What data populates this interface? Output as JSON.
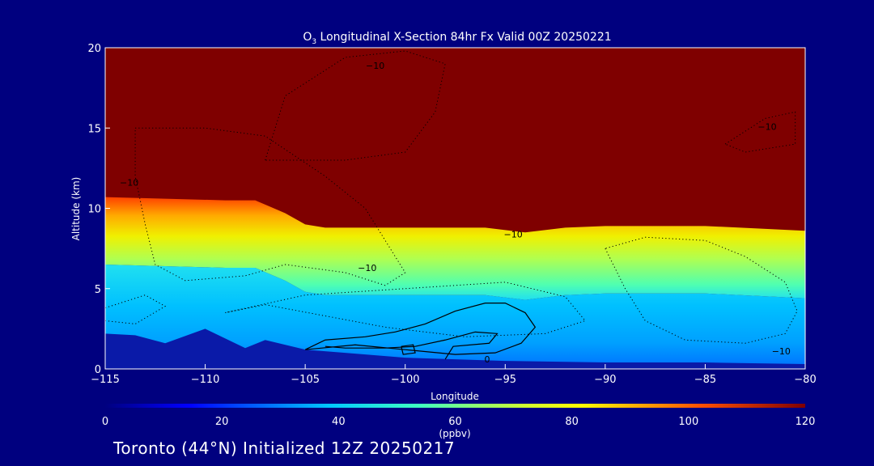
{
  "chart_data": {
    "type": "heatmap",
    "title_species": "O",
    "title_subscript": "3",
    "title_rest": " Longitudinal X-Section 84hr  Fx Valid 00Z 20250221",
    "xlabel": "Longitude",
    "ylabel": "Altitude (km)",
    "xlim": [
      -115,
      -80
    ],
    "ylim": [
      0,
      20
    ],
    "xticks": [
      -115,
      -110,
      -105,
      -100,
      -95,
      -90,
      -85,
      -80
    ],
    "yticks": [
      0,
      5,
      10,
      15,
      20
    ],
    "xtick_labels": [
      "−115",
      "−110",
      "−105",
      "−100",
      "−95",
      "−90",
      "−85",
      "−80"
    ],
    "ytick_labels": [
      "0",
      "5",
      "10",
      "15",
      "20"
    ],
    "colorbar": {
      "range": [
        0,
        120
      ],
      "ticks": [
        0,
        20,
        40,
        60,
        80,
        100,
        120
      ],
      "tick_labels": [
        "0",
        "20",
        "40",
        "60",
        "80",
        "100",
        "120"
      ],
      "units": "(ppbv)"
    },
    "tropopause_km": [
      [
        -115,
        10.7
      ],
      [
        -112,
        10.6
      ],
      [
        -109,
        10.5
      ],
      [
        -107.5,
        10.5
      ],
      [
        -106,
        9.7
      ],
      [
        -105,
        9.0
      ],
      [
        -104,
        8.8
      ],
      [
        -100,
        8.8
      ],
      [
        -96,
        8.8
      ],
      [
        -94,
        8.5
      ],
      [
        -92,
        8.8
      ],
      [
        -90,
        8.9
      ],
      [
        -85,
        8.9
      ],
      [
        -80,
        8.6
      ]
    ],
    "surface_layer_km": [
      [
        -115,
        2.2
      ],
      [
        -113.5,
        2.1
      ],
      [
        -112,
        1.6
      ],
      [
        -110,
        2.5
      ],
      [
        -108,
        1.3
      ],
      [
        -107,
        1.8
      ],
      [
        -105,
        1.2
      ],
      [
        -103,
        1.0
      ],
      [
        -100,
        0.7
      ],
      [
        -95,
        0.5
      ],
      [
        -90,
        0.4
      ],
      [
        -85,
        0.4
      ],
      [
        -80,
        0.3
      ]
    ],
    "contour_labels": [
      {
        "text": "−10",
        "x": -101.5,
        "y": 18.9
      },
      {
        "text": "−10",
        "x": -113.8,
        "y": 11.6
      },
      {
        "text": "−10",
        "x": -94.6,
        "y": 8.4
      },
      {
        "text": "−10",
        "x": -101.9,
        "y": 6.3
      },
      {
        "text": "−10",
        "x": -81.9,
        "y": 15.1
      },
      {
        "text": "−10",
        "x": -81.2,
        "y": 1.1
      },
      {
        "text": "0",
        "x": -95.9,
        "y": 0.6
      }
    ]
  },
  "footer": {
    "caption": "Toronto (44°N) Initialized 12Z 20250217"
  }
}
